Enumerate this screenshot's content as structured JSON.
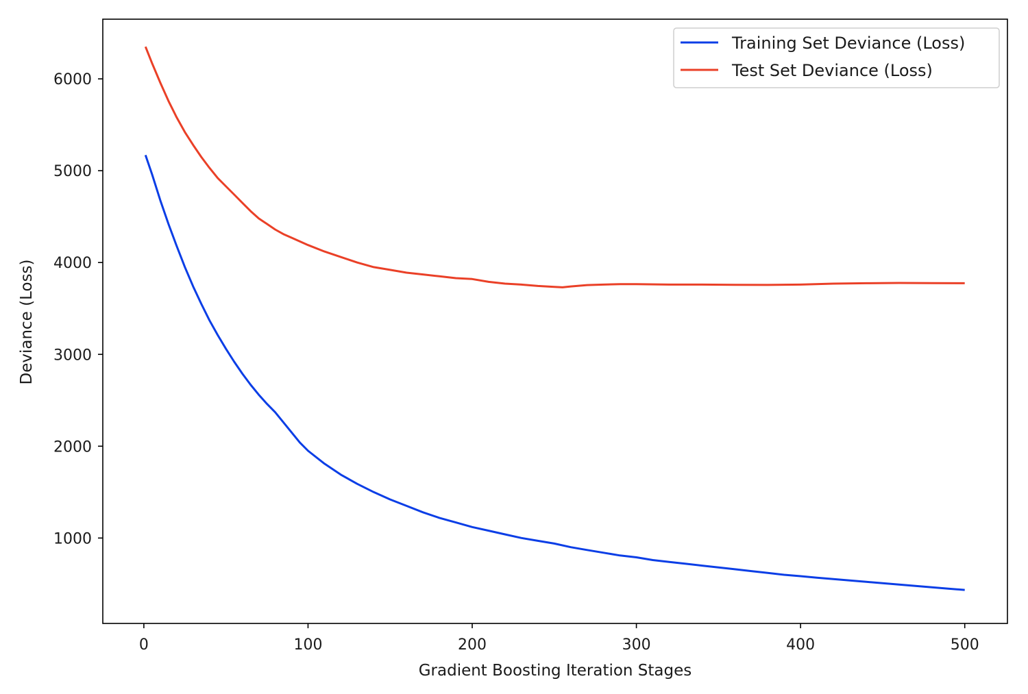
{
  "chart_data": {
    "type": "line",
    "title": "",
    "xlabel": "Gradient Boosting Iteration Stages",
    "ylabel": "Deviance (Loss)",
    "xlim": [
      -25,
      526
    ],
    "ylim": [
      70,
      6650
    ],
    "xticks": [
      0,
      100,
      200,
      300,
      400,
      500
    ],
    "yticks": [
      1000,
      2000,
      3000,
      4000,
      5000,
      6000
    ],
    "grid": false,
    "legend_position": "top-right",
    "colors": {
      "train": "#0b3ee6",
      "test": "#ea4027"
    },
    "series": [
      {
        "name": "Training Set Deviance (Loss)",
        "color": "#0b3ee6",
        "x": [
          1,
          5,
          10,
          15,
          20,
          25,
          30,
          35,
          40,
          45,
          50,
          55,
          60,
          65,
          70,
          75,
          80,
          85,
          90,
          95,
          100,
          110,
          120,
          130,
          140,
          150,
          160,
          170,
          180,
          190,
          200,
          210,
          220,
          230,
          240,
          250,
          260,
          270,
          280,
          290,
          300,
          310,
          320,
          330,
          340,
          350,
          360,
          370,
          380,
          390,
          400,
          410,
          420,
          430,
          440,
          450,
          460,
          470,
          480,
          490,
          500
        ],
        "y": [
          5170,
          4960,
          4680,
          4420,
          4180,
          3950,
          3740,
          3550,
          3370,
          3210,
          3060,
          2920,
          2790,
          2670,
          2560,
          2460,
          2370,
          2260,
          2150,
          2040,
          1950,
          1810,
          1690,
          1590,
          1500,
          1420,
          1350,
          1280,
          1220,
          1170,
          1120,
          1080,
          1040,
          1000,
          970,
          940,
          900,
          870,
          840,
          810,
          790,
          760,
          740,
          720,
          700,
          680,
          660,
          640,
          620,
          600,
          585,
          568,
          553,
          538,
          523,
          508,
          493,
          478,
          463,
          448,
          435
        ]
      },
      {
        "name": "Test Set Deviance (Loss)",
        "color": "#ea4027",
        "x": [
          1,
          5,
          10,
          15,
          20,
          25,
          30,
          35,
          40,
          45,
          50,
          55,
          60,
          65,
          70,
          75,
          80,
          85,
          90,
          95,
          100,
          110,
          120,
          130,
          140,
          150,
          160,
          170,
          180,
          190,
          200,
          210,
          220,
          230,
          240,
          250,
          255,
          260,
          270,
          280,
          290,
          300,
          320,
          340,
          360,
          380,
          400,
          420,
          440,
          460,
          480,
          500
        ],
        "y": [
          6350,
          6170,
          5960,
          5760,
          5580,
          5420,
          5280,
          5150,
          5030,
          4920,
          4830,
          4740,
          4650,
          4560,
          4480,
          4420,
          4360,
          4310,
          4270,
          4230,
          4190,
          4120,
          4060,
          4000,
          3950,
          3920,
          3890,
          3870,
          3850,
          3830,
          3820,
          3790,
          3770,
          3760,
          3745,
          3735,
          3730,
          3740,
          3755,
          3760,
          3765,
          3765,
          3760,
          3760,
          3758,
          3756,
          3760,
          3770,
          3775,
          3778,
          3776,
          3775
        ]
      }
    ]
  }
}
